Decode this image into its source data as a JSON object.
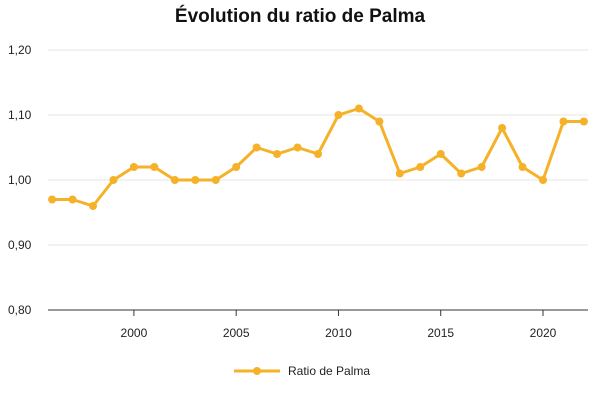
{
  "chart_data": {
    "type": "line",
    "title": "Évolution du ratio de Palma",
    "xlabel": "",
    "ylabel": "",
    "x": [
      1996,
      1997,
      1998,
      1999,
      2000,
      2001,
      2002,
      2003,
      2004,
      2005,
      2006,
      2007,
      2008,
      2009,
      2010,
      2011,
      2012,
      2013,
      2014,
      2015,
      2016,
      2017,
      2018,
      2019,
      2020,
      2021,
      2022
    ],
    "series": [
      {
        "name": "Ratio de Palma",
        "color": "#f5b128",
        "values": [
          0.97,
          0.97,
          0.96,
          1.0,
          1.02,
          1.02,
          1.0,
          1.0,
          1.0,
          1.02,
          1.05,
          1.04,
          1.05,
          1.04,
          1.1,
          1.11,
          1.09,
          1.01,
          1.02,
          1.04,
          1.01,
          1.02,
          1.08,
          1.02,
          1.0,
          1.09,
          1.09
        ]
      }
    ],
    "xlim": [
      1995.8,
      2022.2
    ],
    "ylim": [
      0.8,
      1.2
    ],
    "y_ticks": [
      {
        "value": 0.8,
        "label": "0,80"
      },
      {
        "value": 0.9,
        "label": "0,90"
      },
      {
        "value": 1.0,
        "label": "1,00"
      },
      {
        "value": 1.1,
        "label": "1,10"
      },
      {
        "value": 1.2,
        "label": "1,20"
      }
    ],
    "x_ticks": [
      {
        "value": 2000,
        "label": "2000"
      },
      {
        "value": 2005,
        "label": "2005"
      },
      {
        "value": 2010,
        "label": "2010"
      },
      {
        "value": 2015,
        "label": "2015"
      },
      {
        "value": 2020,
        "label": "2020"
      }
    ],
    "grid": true,
    "legend_position": "bottom"
  }
}
